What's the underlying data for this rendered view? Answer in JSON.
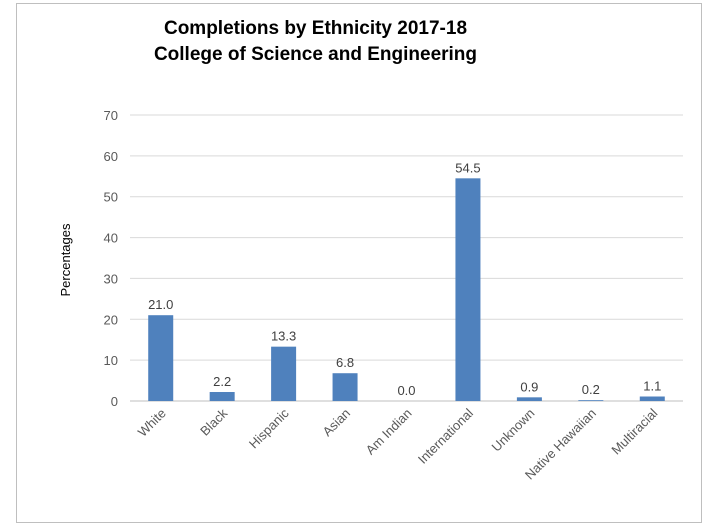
{
  "chart_data": {
    "type": "bar",
    "title_lines": [
      "Completions by Ethnicity 2017-18",
      "College of Science and Engineering"
    ],
    "xlabel": "",
    "ylabel": "Percentages",
    "ylim": [
      0,
      70
    ],
    "yticks": [
      0,
      10,
      20,
      30,
      40,
      50,
      60,
      70
    ],
    "categories": [
      "White",
      "Black",
      "Hispanic",
      "Asian",
      "Am Indian",
      "International",
      "Unknown",
      "Native Hawaiian",
      "Multiracial"
    ],
    "values": [
      21.0,
      2.2,
      13.3,
      6.8,
      0.0,
      54.5,
      0.9,
      0.2,
      1.1
    ],
    "data_labels": [
      "21.0",
      "2.2",
      "13.3",
      "6.8",
      "0.0",
      "54.5",
      "0.9",
      "0.2",
      "1.1"
    ],
    "grid": true,
    "legend": "none",
    "colors": {
      "bar": "#4f81bd",
      "grid": "#d9d9d9",
      "axis": "#bfbfbf"
    }
  }
}
